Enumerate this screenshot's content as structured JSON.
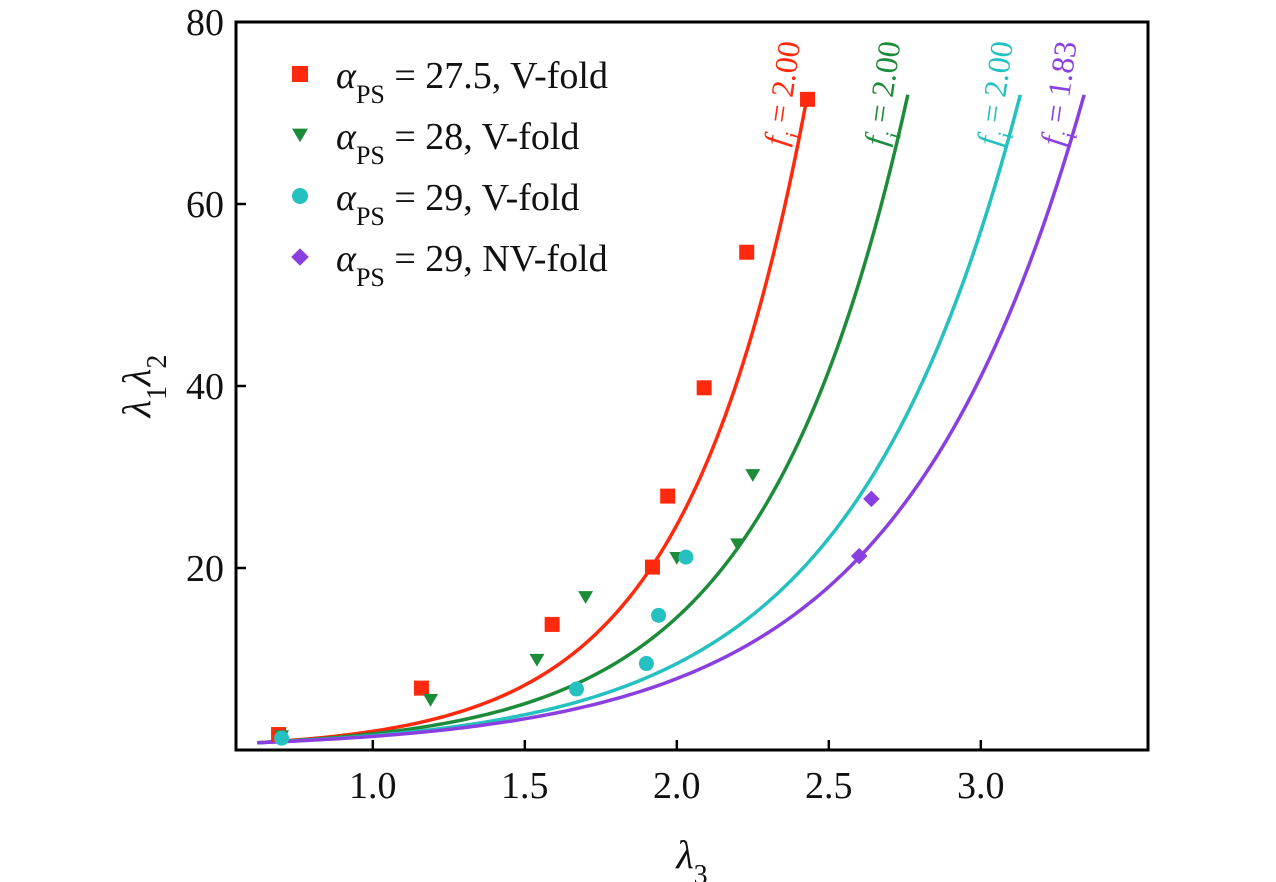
{
  "chart_data": {
    "type": "scatter",
    "title": "",
    "xlabel": {
      "base": "λ",
      "sub": "3"
    },
    "ylabel": {
      "base1": "λ",
      "sub1": "1",
      "base2": "λ",
      "sub2": "2"
    },
    "xlim": [
      0.55,
      3.55
    ],
    "ylim": [
      0,
      80
    ],
    "xticks": [
      1.0,
      1.5,
      2.0,
      2.5,
      3.0
    ],
    "xtick_labels": [
      "1.0",
      "1.5",
      "2.0",
      "2.5",
      "3.0"
    ],
    "yticks": [
      20,
      40,
      60,
      80
    ],
    "ytick_labels": [
      "20",
      "40",
      "60",
      "80"
    ],
    "grid": false,
    "legend_position": "top-left",
    "series": [
      {
        "name": "α_PS = 27.5, V-fold",
        "legend_sym": "α",
        "legend_sub": "PS",
        "legend_rest": " = 27.5, V-fold",
        "color": "#ff2a0d",
        "marker": "square",
        "points": [
          [
            0.69,
            1.7
          ],
          [
            1.16,
            6.8
          ],
          [
            1.59,
            13.8
          ],
          [
            1.92,
            20.1
          ],
          [
            1.97,
            27.9
          ],
          [
            2.09,
            39.8
          ],
          [
            2.23,
            54.7
          ],
          [
            2.43,
            71.5
          ]
        ],
        "fit": {
          "fi_label": "= 2.00",
          "x_range": [
            0.62,
            2.43
          ],
          "end_y": 72
        }
      },
      {
        "name": "α_PS = 28, V-fold",
        "legend_sym": "α",
        "legend_sub": "PS",
        "legend_rest": " = 28, V-fold",
        "color": "#1c8c3a",
        "marker": "triangle-down",
        "points": [
          [
            0.7,
            1.5
          ],
          [
            1.19,
            5.5
          ],
          [
            1.54,
            9.9
          ],
          [
            1.7,
            16.8
          ],
          [
            2.0,
            21.1
          ],
          [
            2.2,
            22.6
          ],
          [
            2.25,
            30.2
          ]
        ],
        "fit": {
          "fi_label": "= 2.00",
          "x_range": [
            0.62,
            2.76
          ],
          "end_y": 72
        }
      },
      {
        "name": "α_PS = 29, V-fold",
        "legend_sym": "α",
        "legend_sub": "PS",
        "legend_rest": " = 29, V-fold",
        "color": "#25c0c0",
        "marker": "circle",
        "points": [
          [
            0.7,
            1.3
          ],
          [
            1.67,
            6.7
          ],
          [
            1.9,
            9.5
          ],
          [
            1.94,
            14.8
          ],
          [
            2.03,
            21.2
          ]
        ],
        "fit": {
          "fi_label": "= 2.00",
          "x_range": [
            0.62,
            3.13
          ],
          "end_y": 72
        }
      },
      {
        "name": "α_PS = 29, NV-fold",
        "legend_sym": "α",
        "legend_sub": "PS",
        "legend_rest": " = 29, NV-fold",
        "color": "#8a3fe0",
        "marker": "diamond",
        "points": [
          [
            2.6,
            21.3
          ],
          [
            2.64,
            27.6
          ]
        ],
        "fit": {
          "fi_label": "= 1.83",
          "x_range": [
            0.62,
            3.34
          ],
          "end_y": 72
        }
      }
    ],
    "annotations": {
      "fi_base": "f",
      "fi_sub": "i"
    }
  }
}
